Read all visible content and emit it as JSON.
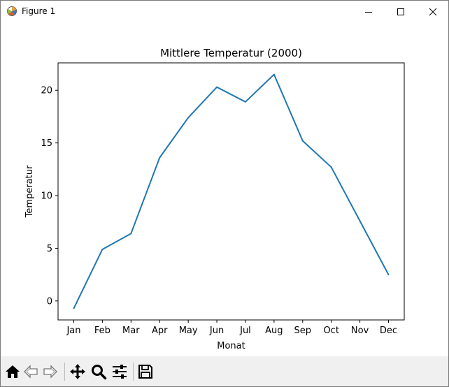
{
  "window": {
    "title": "Figure 1",
    "icons": {
      "app": "matplotlib-figure-icon",
      "minimize": "minimize-icon",
      "maximize": "maximize-icon",
      "close": "close-icon"
    }
  },
  "toolbar": {
    "buttons": [
      {
        "name": "home",
        "icon": "home-icon"
      },
      {
        "name": "back",
        "icon": "arrow-left-icon"
      },
      {
        "name": "forward",
        "icon": "arrow-right-icon"
      },
      {
        "name": "pan",
        "icon": "move-icon"
      },
      {
        "name": "zoom",
        "icon": "magnifier-icon"
      },
      {
        "name": "configure",
        "icon": "sliders-icon"
      },
      {
        "name": "save",
        "icon": "floppy-disk-icon"
      }
    ]
  },
  "chart_data": {
    "type": "line",
    "title": "Mittlere Temperatur (2000)",
    "xlabel": "Monat",
    "ylabel": "Temperatur",
    "categories": [
      "Jan",
      "Feb",
      "Mar",
      "Apr",
      "May",
      "Jun",
      "Jul",
      "Aug",
      "Sep",
      "Oct",
      "Nov",
      "Dec"
    ],
    "series": [
      {
        "values": [
          -0.7,
          4.9,
          6.4,
          13.6,
          17.4,
          20.3,
          18.9,
          21.5,
          15.2,
          12.7,
          7.6,
          2.5
        ],
        "color": "#1f77b4"
      }
    ],
    "yticks": [
      0,
      5,
      10,
      15,
      20
    ],
    "ylim": [
      -1.8,
      22.6
    ],
    "grid": false,
    "legend": "none"
  }
}
